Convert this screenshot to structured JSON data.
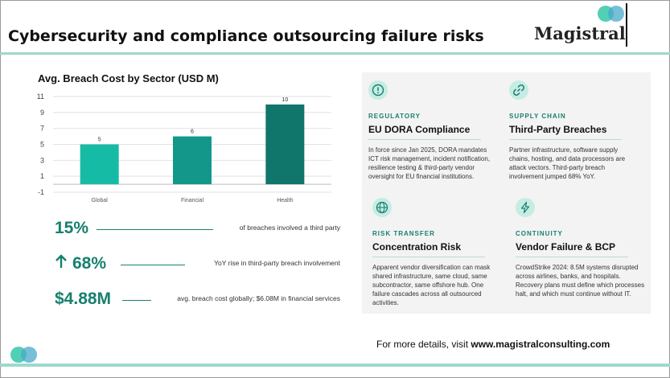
{
  "header": {
    "title": "Cybersecurity and compliance outsourcing failure risks",
    "logo_text": "Magistral"
  },
  "chart_data": {
    "type": "bar",
    "title": "Avg. Breach Cost by Sector (USD M)",
    "categories": [
      "Global",
      "Financial",
      "Health"
    ],
    "values": [
      5,
      6,
      10
    ],
    "data_labels": [
      "5",
      "6",
      "10"
    ],
    "ylim": [
      -1,
      11
    ],
    "yticks": [
      11,
      9,
      7,
      5,
      3,
      1,
      -1
    ],
    "bar_colors": [
      "#16bba5",
      "#12978a",
      "#10756a"
    ],
    "grid": true,
    "legend": "none",
    "xlabel": "",
    "ylabel": ""
  },
  "stats": [
    {
      "value": "15%",
      "text": "of breaches involved a third party",
      "arrow": false
    },
    {
      "value": "68%",
      "text": "YoY rise in third-party breach involvement",
      "arrow": true
    },
    {
      "value": "$4.88M",
      "text": "avg. breach cost globally; $6.08M in financial services",
      "arrow": false
    }
  ],
  "cards": [
    {
      "icon": "alert-circle-icon",
      "category": "REGULATORY",
      "heading": "EU DORA Compliance",
      "body": "In force since Jan 2025, DORA mandates ICT risk management, incident notification, resilience testing & third-party vendor oversight for EU financial institutions."
    },
    {
      "icon": "link-icon",
      "category": "SUPPLY CHAIN",
      "heading": "Third-Party Breaches",
      "body": "Partner infrastructure, software supply chains, hosting, and data processors are attack vectors. Third-party breach involvement jumped 68% YoY."
    },
    {
      "icon": "globe-icon",
      "category": "RISK TRANSFER",
      "heading": "Concentration Risk",
      "body": "Apparent vendor diversification can mask shared infrastructure, same cloud, same subcontractor, same offshore hub. One failure cascades across all outsourced activities."
    },
    {
      "icon": "lightning-icon",
      "category": "CONTINUITY",
      "heading": "Vendor Failure & BCP",
      "body": "CrowdStrike 2024: 8.5M systems disrupted across airlines, banks, and hospitals. Recovery plans must define which processes halt, and which must continue without IT."
    }
  ],
  "footer": {
    "prefix": "For more details, visit ",
    "link": "www.magistralconsulting.com"
  },
  "colors": {
    "accent": "#17806e",
    "accent_light": "#9ed8cc",
    "circle_a": "#35c7a9",
    "circle_b": "#4aa8c9"
  }
}
